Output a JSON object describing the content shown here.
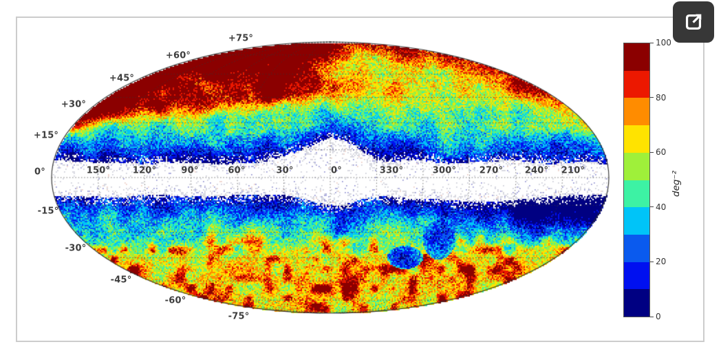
{
  "page": {
    "background": "#ffffff"
  },
  "figure": {
    "border_color": "#cccccc",
    "background": "#ffffff"
  },
  "external_link_button": {
    "icon": "external-link",
    "background": "#373737",
    "icon_color": "#ffffff"
  },
  "chart_data": {
    "type": "heatmap",
    "title": "",
    "projection": "mollweide",
    "coordinate_system": "galactic (longitude along equator, latitude on rim)",
    "grid": "dotted graticule, meridians every 30 deg, parallels every 15 deg, grid on",
    "longitude_tick_labels": [
      "150°",
      "120°",
      "90°",
      "60°",
      "30°",
      "0°",
      "330°",
      "300°",
      "270°",
      "240°",
      "210°"
    ],
    "latitude_tick_labels": [
      "+75°",
      "+60°",
      "+45°",
      "+30°",
      "+15°",
      "0°",
      "-15°",
      "-30°",
      "-45°",
      "-60°",
      "-75°"
    ],
    "colorbar": {
      "label": "deg⁻²",
      "min": 0,
      "max": 100,
      "tick_values": [
        100,
        80,
        60,
        40,
        20,
        0
      ],
      "tick_labels": [
        "100",
        "80",
        "60",
        "40",
        "20",
        "0"
      ],
      "segment_colors_low_to_high": [
        "#000082",
        "#0010f0",
        "#0a5aee",
        "#00c4f8",
        "#3df2a4",
        "#9ff03a",
        "#ffe300",
        "#ff8c00",
        "#ec1800",
        "#8b0000"
      ]
    },
    "regions": [
      {
        "name": "galactic-plane-mask",
        "lat_range_deg": [
          -10,
          10
        ],
        "density": "no data (white with sparse speckle)"
      },
      {
        "name": "galactic-center-bulge-mask",
        "note": "white masked bulge near 0° longitude reaching ~±20° latitude"
      },
      {
        "name": "plane-adjacent-band",
        "lat_range_deg_abs": [
          10,
          20
        ],
        "approx_density": "5-30 (dark blue / blue speckle)"
      },
      {
        "name": "mid-latitudes",
        "lat_range_deg_abs": [
          20,
          35
        ],
        "approx_density": "30-55 (cyan / green)"
      },
      {
        "name": "north-cap-left-and-center",
        "lat_range_deg": [
          30,
          75
        ],
        "approx_density": "70-100 (orange / red / dark red)"
      },
      {
        "name": "north-right-interior",
        "approx_density": "40-60 (green-cyan with orange speckle near rim)"
      },
      {
        "name": "south-mid-and-cap",
        "approx_density": "50-75 with 80-100 red patches"
      },
      {
        "name": "south-right-rim",
        "approx_density": "10-35 (blue with white speckle)"
      },
      {
        "name": "large-magellanic-cloud-void",
        "approx_density": "15-30 (dark blue oval)"
      },
      {
        "name": "small-magellanic-cloud-void",
        "approx_density": "15-30 (dark blue oval)"
      }
    ]
  }
}
